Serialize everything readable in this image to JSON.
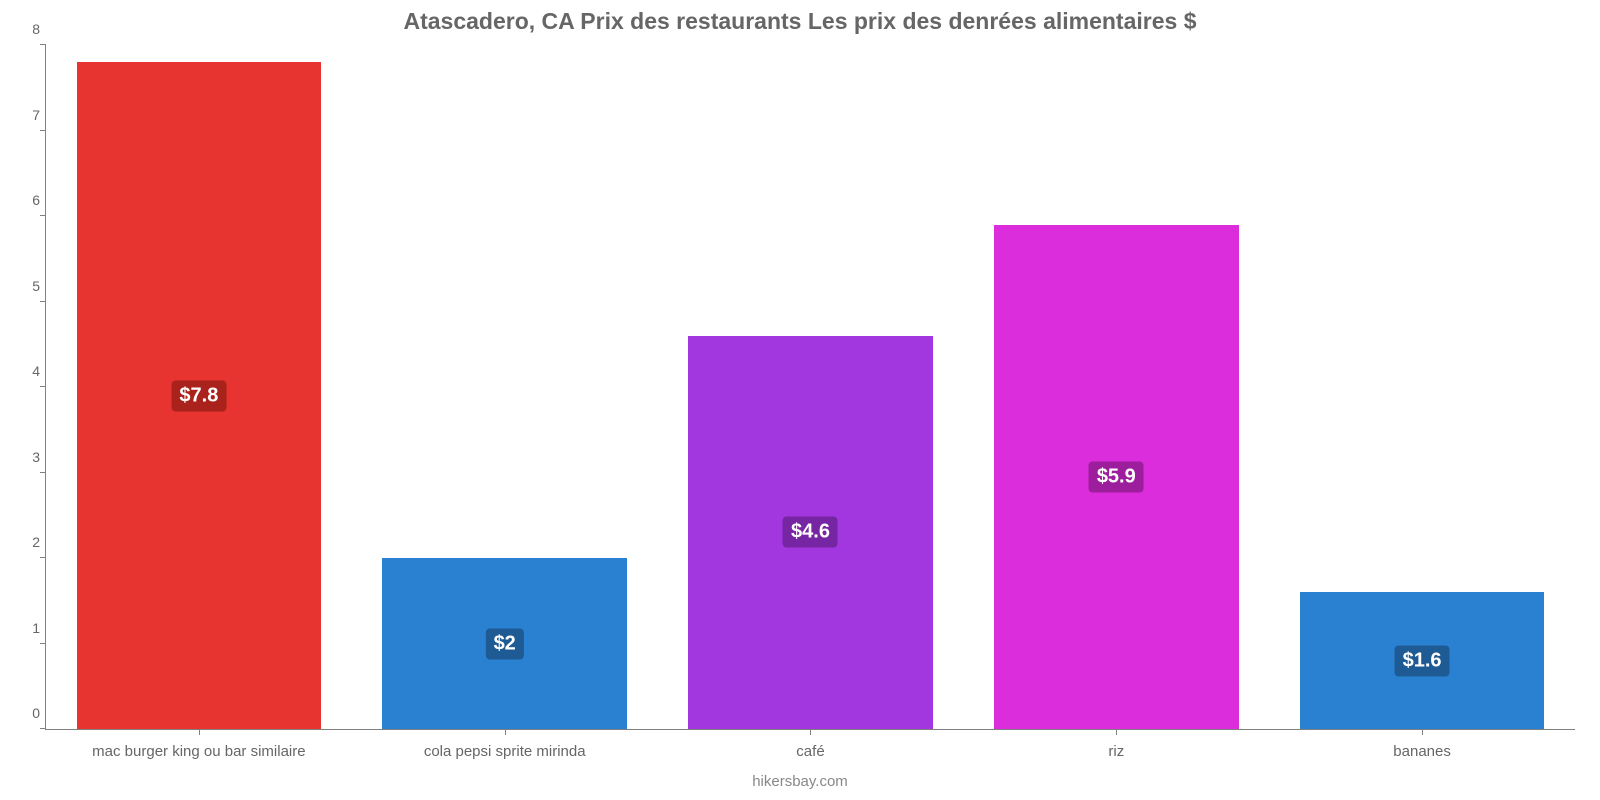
{
  "chart": {
    "type": "bar",
    "title": "Atascadero, CA Prix des restaurants Les prix des denrées alimentaires $",
    "title_color": "#666666",
    "title_fontsize": 23,
    "footer": "hikersbay.com",
    "footer_color": "#888888",
    "footer_fontsize": 15,
    "background_color": "#ffffff",
    "axis_color": "#808080",
    "tick_label_color": "#666666",
    "tick_fontsize": 14,
    "x_tick_fontsize": 15,
    "ylim": [
      0,
      8
    ],
    "yticks": [
      0,
      1,
      2,
      3,
      4,
      5,
      6,
      7,
      8
    ],
    "bar_width_pct": 80,
    "value_label_fontsize": 20,
    "bars": [
      {
        "category": "mac burger king ou bar similaire",
        "value": 7.8,
        "value_label": "$7.8",
        "bar_color": "#e73431",
        "label_bg": "#aa221c"
      },
      {
        "category": "cola pepsi sprite mirinda",
        "value": 2.0,
        "value_label": "$2",
        "bar_color": "#2a80d1",
        "label_bg": "#1e5b94"
      },
      {
        "category": "café",
        "value": 4.6,
        "value_label": "$4.6",
        "bar_color": "#a237e0",
        "label_bg": "#7626a3"
      },
      {
        "category": "riz",
        "value": 5.9,
        "value_label": "$5.9",
        "bar_color": "#db2ddb",
        "label_bg": "#9c1e9c"
      },
      {
        "category": "bananes",
        "value": 1.6,
        "value_label": "$1.6",
        "bar_color": "#2a80d1",
        "label_bg": "#1e5b94"
      }
    ]
  }
}
